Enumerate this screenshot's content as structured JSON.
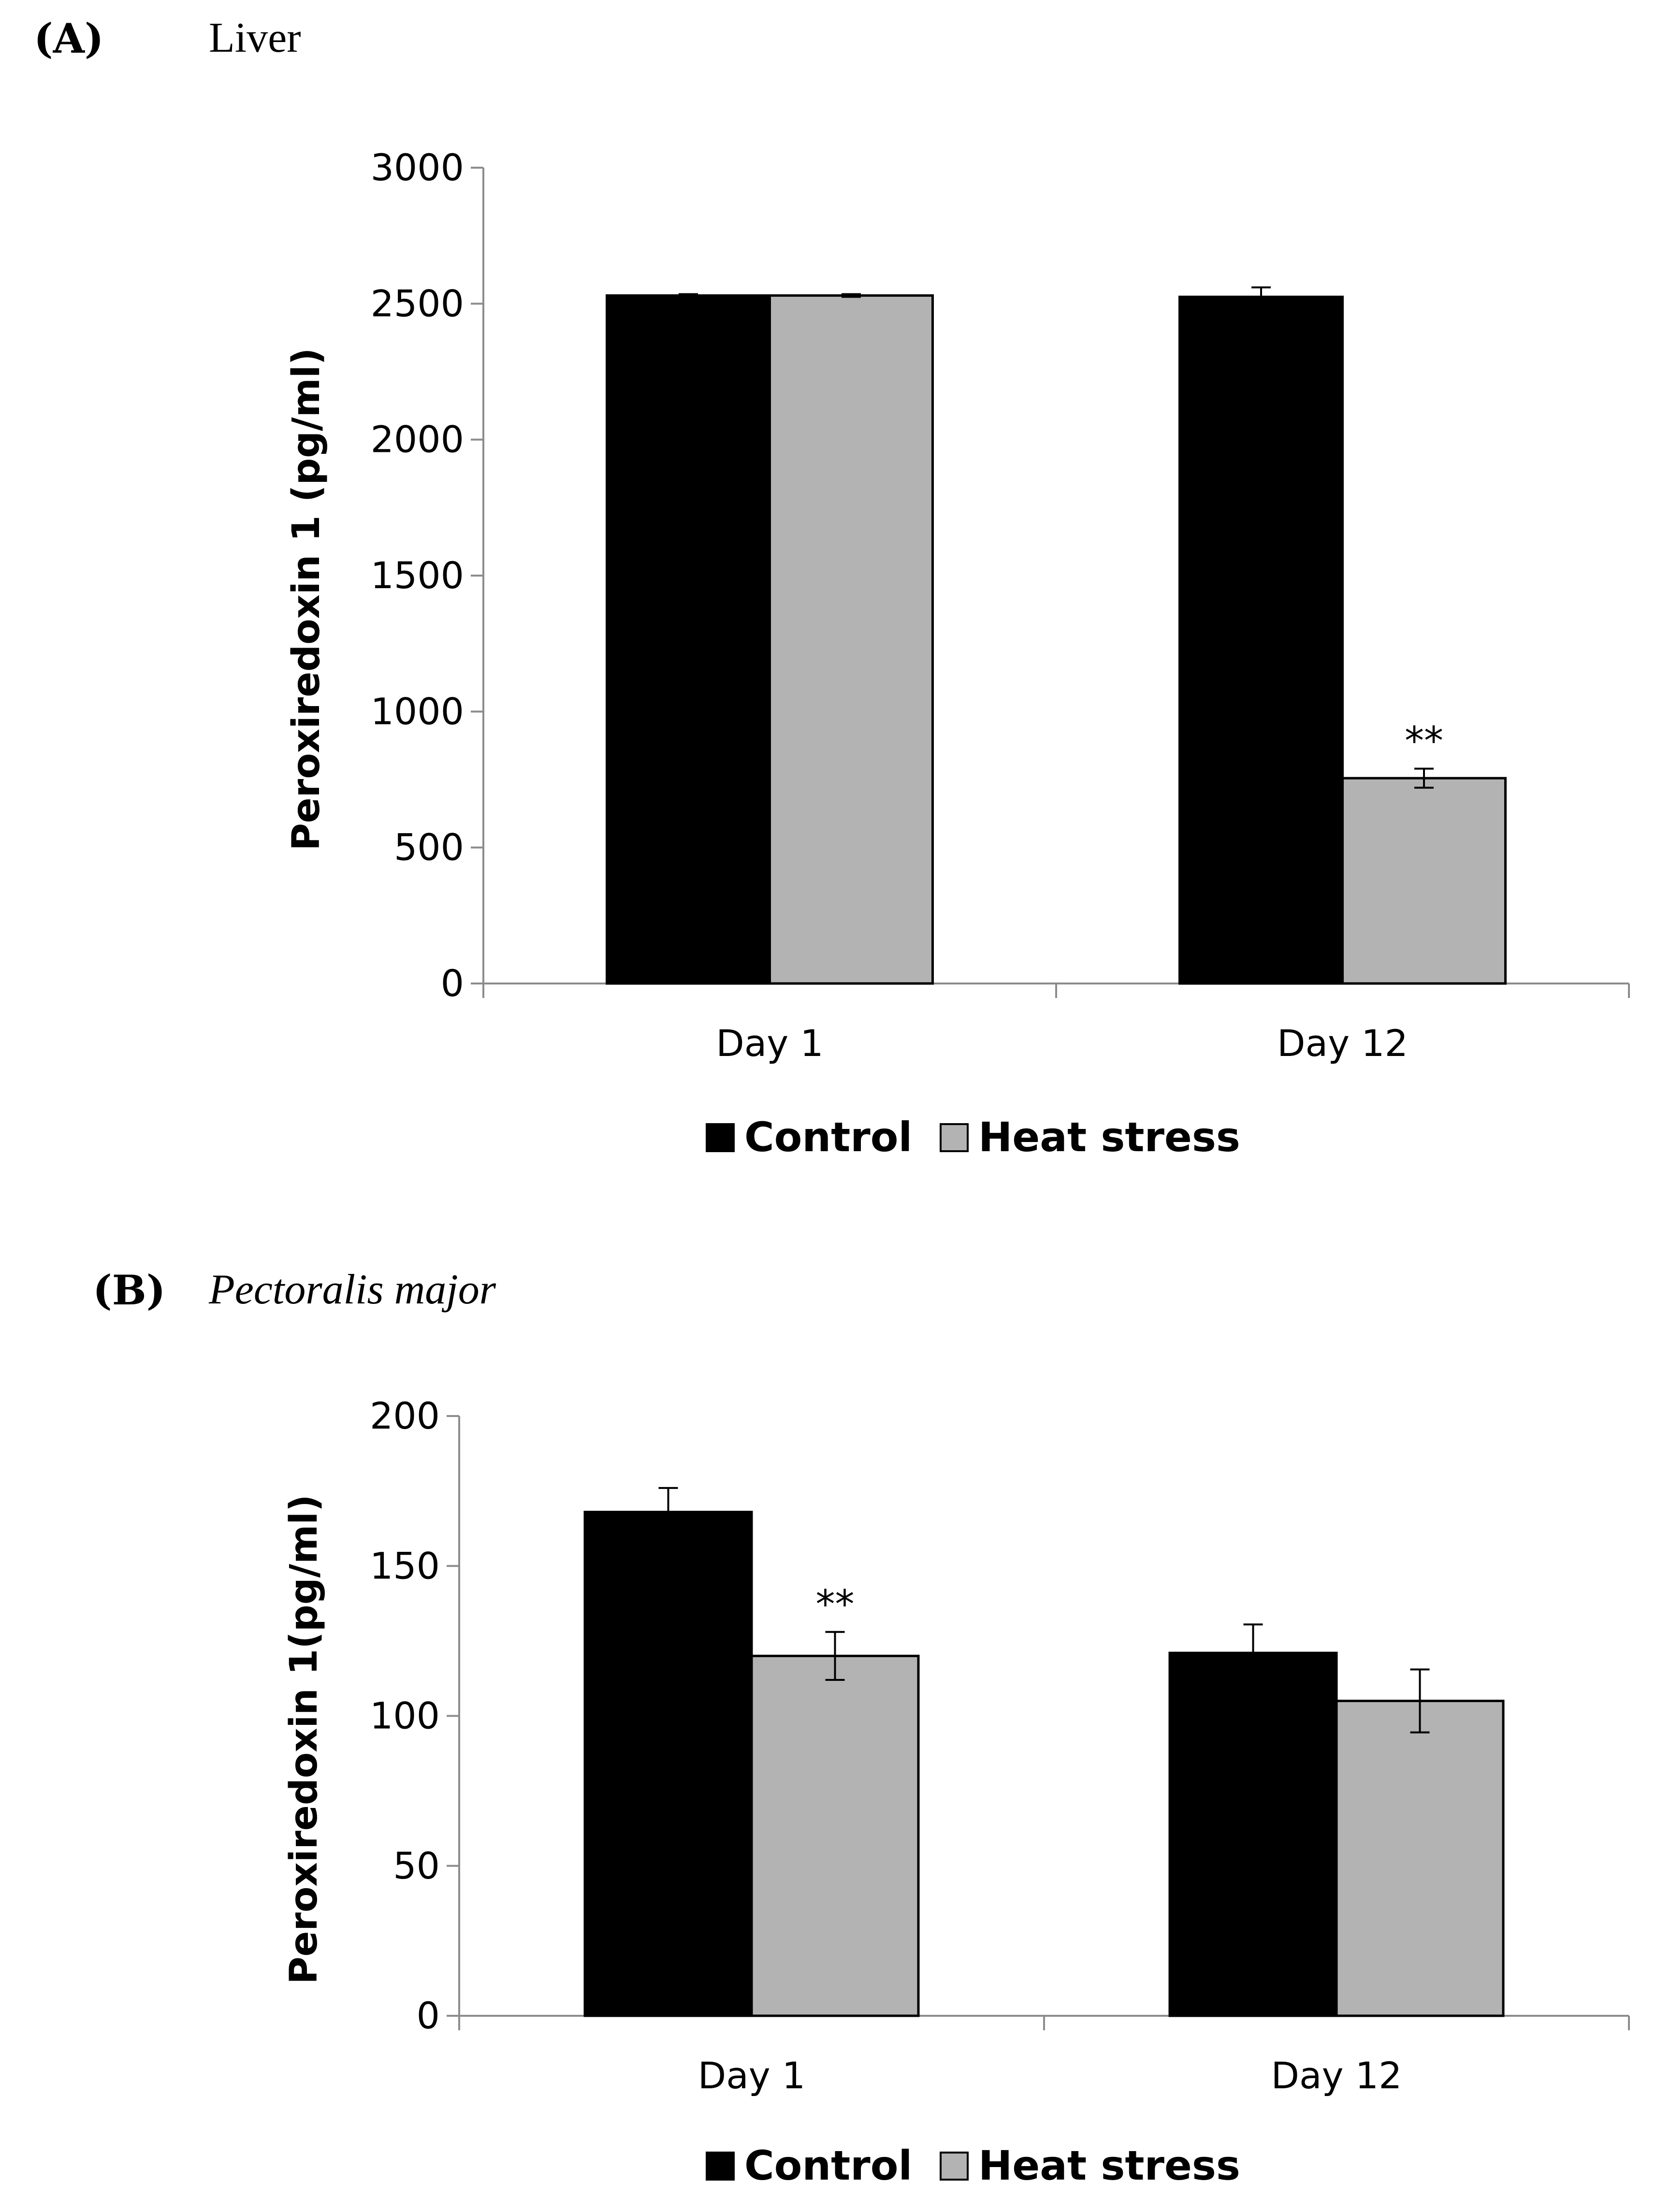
{
  "panels": [
    {
      "letter": "(A)",
      "title": "Liver",
      "title_italic": false
    },
    {
      "letter": "(B)",
      "title": "Pectoralis major",
      "title_italic": true
    }
  ],
  "colors": {
    "control": "#000000",
    "heat_stress": "#b3b3b3",
    "axis": "#8c8c8c"
  },
  "chart_data": [
    {
      "type": "bar",
      "title": "Liver",
      "ylabel": "Peroxiredoxin 1 (pg/ml)",
      "xlabel": "",
      "ylim": [
        0,
        3000
      ],
      "yticks": [
        0,
        500,
        1000,
        1500,
        2000,
        2500,
        3000
      ],
      "ytick_labels": [
        "0",
        "500",
        "1000",
        "1500",
        "2000",
        "2500",
        "3000"
      ],
      "categories": [
        "Day 1",
        "Day 12"
      ],
      "series": [
        {
          "name": "Control",
          "values": [
            2530,
            2525
          ],
          "errors": [
            5,
            35
          ],
          "annotations": [
            "",
            ""
          ]
        },
        {
          "name": "Heat stress",
          "values": [
            2530,
            755
          ],
          "errors": [
            5,
            35
          ],
          "annotations": [
            "",
            "**"
          ]
        }
      ],
      "legend": "bottom-center"
    },
    {
      "type": "bar",
      "title": "Pectoralis major",
      "ylabel": "Peroxiredoxin 1(pg/ml)",
      "xlabel": "",
      "ylim": [
        0,
        200
      ],
      "yticks": [
        0,
        50,
        100,
        150,
        200
      ],
      "ytick_labels": [
        "0",
        "50",
        "100",
        "150",
        "200"
      ],
      "categories": [
        "Day 1",
        "Day 12"
      ],
      "series": [
        {
          "name": "Control",
          "values": [
            168,
            121
          ],
          "errors": [
            8,
            9.5
          ],
          "annotations": [
            "",
            ""
          ]
        },
        {
          "name": "Heat stress",
          "values": [
            120,
            105
          ],
          "errors": [
            8,
            10.5
          ],
          "annotations": [
            "**",
            ""
          ]
        }
      ],
      "legend": "bottom-center"
    }
  ]
}
